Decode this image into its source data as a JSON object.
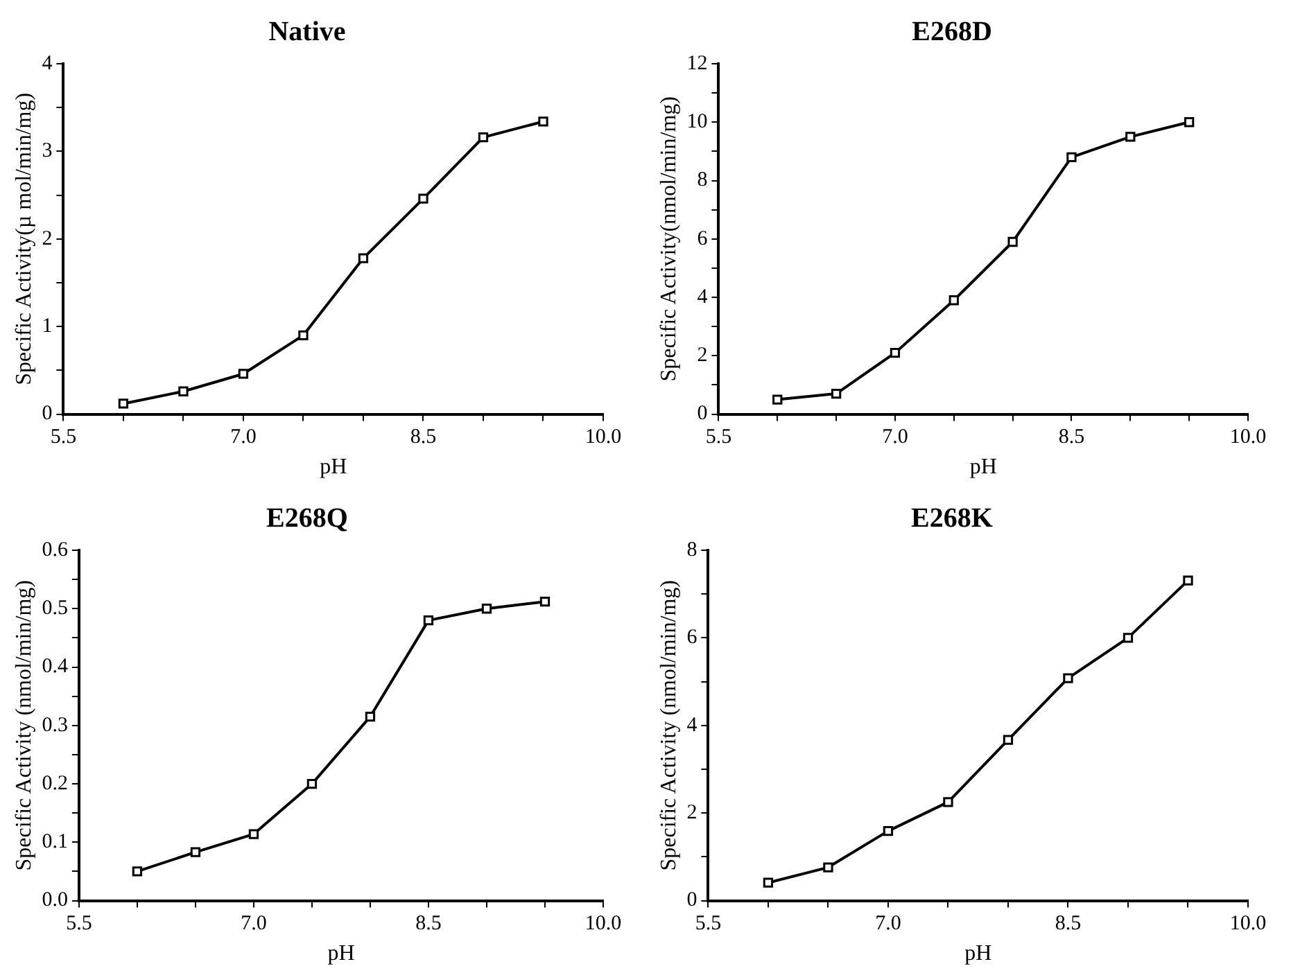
{
  "chart_data": [
    {
      "type": "line",
      "title": "Native",
      "xlabel": "pH",
      "ylabel": "Specific Activity(µ mol/min/mg)",
      "color": "#000000",
      "marker": "square",
      "x": [
        6.0,
        6.5,
        7.0,
        7.5,
        8.0,
        8.5,
        9.0,
        9.5
      ],
      "values": [
        0.12,
        0.26,
        0.46,
        0.9,
        1.78,
        2.46,
        3.16,
        3.34
      ],
      "xlim": [
        5.5,
        10.0
      ],
      "xticks": [
        {
          "value": 5.5,
          "label": "5.5"
        },
        {
          "value": 6,
          "label": null
        },
        {
          "value": 6.5,
          "label": null
        },
        {
          "value": 7,
          "label": "7.0"
        },
        {
          "value": 7.5,
          "label": null
        },
        {
          "value": 8,
          "label": null
        },
        {
          "value": 8.5,
          "label": "8.5"
        },
        {
          "value": 9,
          "label": null
        },
        {
          "value": 9.5,
          "label": null
        },
        {
          "value": 10,
          "label": "10.0"
        }
      ],
      "ylim": [
        0,
        4
      ],
      "yticks": [
        0,
        {
          "value": 0.5,
          "label": null
        },
        1,
        {
          "value": 1.5,
          "label": null
        },
        2,
        {
          "value": 2.5,
          "label": null
        },
        3,
        {
          "value": 3.5,
          "label": null
        },
        4
      ]
    },
    {
      "type": "line",
      "title": "E268D",
      "xlabel": "pH",
      "ylabel": "Specific Activity(nmol/min/mg)",
      "color": "#000000",
      "marker": "square",
      "x": [
        6.0,
        6.5,
        7.0,
        7.5,
        8.0,
        8.5,
        9.0,
        9.5
      ],
      "values": [
        0.5,
        0.7,
        2.1,
        3.9,
        5.9,
        8.8,
        9.5,
        10.0
      ],
      "xlim": [
        5.5,
        10.0
      ],
      "xticks": [
        {
          "value": 5.5,
          "label": "5.5"
        },
        {
          "value": 6,
          "label": null
        },
        {
          "value": 6.5,
          "label": null
        },
        {
          "value": 7,
          "label": "7.0"
        },
        {
          "value": 7.5,
          "label": null
        },
        {
          "value": 8,
          "label": null
        },
        {
          "value": 8.5,
          "label": "8.5"
        },
        {
          "value": 9,
          "label": null
        },
        {
          "value": 9.5,
          "label": null
        },
        {
          "value": 10,
          "label": "10.0"
        }
      ],
      "ylim": [
        0,
        12
      ],
      "yticks": [
        0,
        {
          "value": 1,
          "label": null
        },
        2,
        {
          "value": 3,
          "label": null
        },
        4,
        {
          "value": 5,
          "label": null
        },
        6,
        {
          "value": 7,
          "label": null
        },
        8,
        {
          "value": 9,
          "label": null
        },
        10,
        {
          "value": 11,
          "label": null
        },
        12
      ]
    },
    {
      "type": "line",
      "title": "E268Q",
      "xlabel": "pH",
      "ylabel": "Specific Activity (nmol/min/mg)",
      "color": "#000000",
      "marker": "square",
      "x": [
        6.0,
        6.5,
        7.0,
        7.5,
        8.0,
        8.5,
        9.0,
        9.5
      ],
      "values": [
        0.05,
        0.083,
        0.114,
        0.2,
        0.315,
        0.48,
        0.5,
        0.512
      ],
      "xlim": [
        5.5,
        10.0
      ],
      "xticks": [
        {
          "value": 5.5,
          "label": "5.5"
        },
        {
          "value": 6,
          "label": null
        },
        {
          "value": 6.5,
          "label": null
        },
        {
          "value": 7,
          "label": "7.0"
        },
        {
          "value": 7.5,
          "label": null
        },
        {
          "value": 8,
          "label": null
        },
        {
          "value": 8.5,
          "label": "8.5"
        },
        {
          "value": 9,
          "label": null
        },
        {
          "value": 9.5,
          "label": null
        },
        {
          "value": 10,
          "label": "10.0"
        }
      ],
      "ylim": [
        0,
        0.6
      ],
      "yticks": [
        {
          "value": 0,
          "label": "0.0"
        },
        {
          "value": 0.05,
          "label": null
        },
        0.1,
        {
          "value": 0.15,
          "label": null
        },
        0.2,
        {
          "value": 0.25,
          "label": null
        },
        0.3,
        {
          "value": 0.35,
          "label": null
        },
        0.4,
        {
          "value": 0.45,
          "label": null
        },
        0.5,
        {
          "value": 0.55,
          "label": null
        },
        0.6
      ]
    },
    {
      "type": "line",
      "title": "E268K",
      "xlabel": "pH",
      "ylabel": "Specific Activity (nmol/min/mg)",
      "color": "#000000",
      "marker": "square",
      "x": [
        6.0,
        6.5,
        7.0,
        7.5,
        8.0,
        8.5,
        9.0,
        9.5
      ],
      "values": [
        0.41,
        0.76,
        1.59,
        2.25,
        3.67,
        5.08,
        6.0,
        7.31
      ],
      "xlim": [
        5.5,
        10.0
      ],
      "xticks": [
        {
          "value": 5.5,
          "label": "5.5"
        },
        {
          "value": 6,
          "label": null
        },
        {
          "value": 6.5,
          "label": null
        },
        {
          "value": 7,
          "label": "7.0"
        },
        {
          "value": 7.5,
          "label": null
        },
        {
          "value": 8,
          "label": null
        },
        {
          "value": 8.5,
          "label": "8.5"
        },
        {
          "value": 9,
          "label": null
        },
        {
          "value": 9.5,
          "label": null
        },
        {
          "value": 10,
          "label": "10.0"
        }
      ],
      "ylim": [
        0,
        8
      ],
      "yticks": [
        0,
        {
          "value": 1,
          "label": null
        },
        2,
        {
          "value": 3,
          "label": null
        },
        4,
        {
          "value": 5,
          "label": null
        },
        6,
        {
          "value": 7,
          "label": null
        },
        8
      ]
    }
  ]
}
